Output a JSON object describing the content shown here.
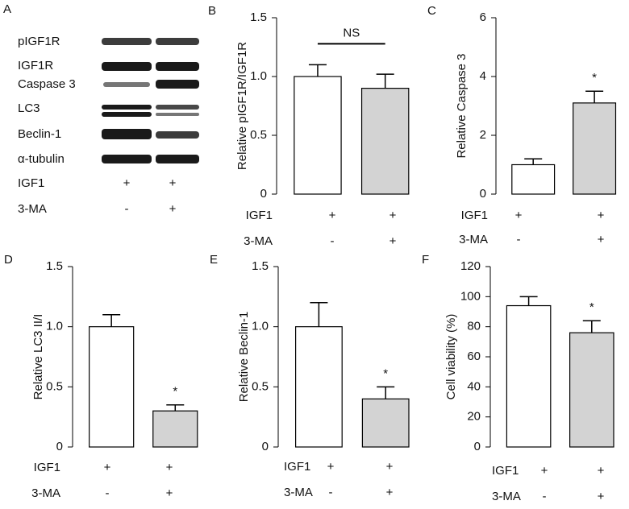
{
  "blot": {
    "panel": "A",
    "bands": [
      "pIGF1R",
      "IGF1R",
      "Caspase 3",
      "LC3",
      "Beclin-1",
      "α-tubulin"
    ],
    "conditions": [
      {
        "name": "IGF1",
        "values": [
          "+",
          "+"
        ]
      },
      {
        "name": "3-MA",
        "values": [
          "-",
          "+"
        ]
      }
    ]
  },
  "chart_data": [
    {
      "type": "bar",
      "panel": "B",
      "ylabel": "Relative pIGF1R/IGF1R",
      "values": [
        1.0,
        0.9
      ],
      "errors": [
        0.1,
        0.12
      ],
      "ylim": [
        0,
        1.5
      ],
      "yticks": [
        0,
        0.5,
        {
          "value": 1,
          "label": "1.0"
        },
        1.5
      ],
      "colors": [
        "#ffffff",
        "#d3d3d3"
      ],
      "comparison_label": "NS",
      "conditions": [
        {
          "name": "IGF1",
          "values": [
            "+",
            "+"
          ]
        },
        {
          "name": "3-MA",
          "values": [
            "-",
            "+"
          ]
        }
      ]
    },
    {
      "type": "bar",
      "panel": "C",
      "ylabel": "Relative Caspase 3",
      "values": [
        1.0,
        3.1
      ],
      "errors": [
        0.2,
        0.4
      ],
      "ylim": [
        0,
        6
      ],
      "yticks": [
        0,
        2,
        4,
        6
      ],
      "colors": [
        "#ffffff",
        "#d3d3d3"
      ],
      "significance": [
        null,
        "*"
      ],
      "conditions": [
        {
          "name": "IGF1",
          "values": [
            "+",
            "+"
          ]
        },
        {
          "name": "3-MA",
          "values": [
            "-",
            "+"
          ]
        }
      ]
    },
    {
      "type": "bar",
      "panel": "D",
      "ylabel": "Relative LC3 II/I",
      "values": [
        1.0,
        0.3
      ],
      "errors": [
        0.1,
        0.05
      ],
      "ylim": [
        0,
        1.5
      ],
      "yticks": [
        0,
        0.5,
        {
          "value": 1,
          "label": "1.0"
        },
        1.5
      ],
      "colors": [
        "#ffffff",
        "#d3d3d3"
      ],
      "significance": [
        null,
        "*"
      ],
      "conditions": [
        {
          "name": "IGF1",
          "values": [
            "+",
            "+"
          ]
        },
        {
          "name": "3-MA",
          "values": [
            "-",
            "+"
          ]
        }
      ]
    },
    {
      "type": "bar",
      "panel": "E",
      "ylabel": "Relative Beclin-1",
      "values": [
        1.0,
        0.4
      ],
      "errors": [
        0.2,
        0.1
      ],
      "ylim": [
        0,
        1.5
      ],
      "yticks": [
        0,
        0.5,
        {
          "value": 1,
          "label": "1.0"
        },
        1.5
      ],
      "colors": [
        "#ffffff",
        "#d3d3d3"
      ],
      "significance": [
        null,
        "*"
      ],
      "conditions": [
        {
          "name": "IGF1",
          "values": [
            "+",
            "+"
          ]
        },
        {
          "name": "3-MA",
          "values": [
            "-",
            "+"
          ]
        }
      ]
    },
    {
      "type": "bar",
      "panel": "F",
      "ylabel": "Cell viability (%)",
      "values": [
        94,
        76
      ],
      "errors": [
        6,
        8
      ],
      "ylim": [
        0,
        120
      ],
      "yticks": [
        0,
        20,
        40,
        60,
        80,
        100,
        120
      ],
      "colors": [
        "#ffffff",
        "#d3d3d3"
      ],
      "significance": [
        null,
        "*"
      ],
      "conditions": [
        {
          "name": "IGF1",
          "values": [
            "+",
            "+"
          ]
        },
        {
          "name": "3-MA",
          "values": [
            "-",
            "+"
          ]
        }
      ]
    }
  ]
}
